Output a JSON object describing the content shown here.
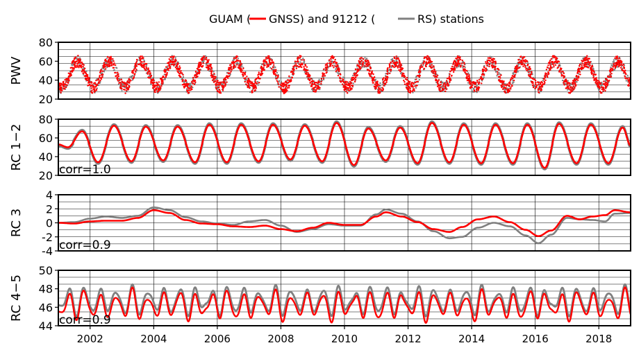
{
  "title": {
    "prefix": "GUAM (",
    "gnss_label": "GNSS) and 91212 (",
    "rs_label": "RS) stations"
  },
  "colors": {
    "gnss": "#ff0000",
    "rs": "#808080",
    "grid": "#000000"
  },
  "x_ticks": [
    "2002",
    "2004",
    "2006",
    "2008",
    "2010",
    "2012",
    "2014",
    "2016",
    "2018"
  ],
  "chart_data": [
    {
      "type": "scatter",
      "ylabel": "PWV",
      "xlim": [
        2001.0,
        2019.0
      ],
      "ylim": [
        20,
        80
      ],
      "y_ticks": [
        20,
        40,
        60,
        80
      ],
      "grid": true,
      "corr_label": "",
      "series": [
        {
          "name": "GNSS",
          "color": "#ff0000",
          "description_values": "daily PWV scatter, seasonal cycle between ~30 and ~62"
        },
        {
          "name": "RS",
          "color": "#808080",
          "description_values": "daily PWV scatter underneath GNSS"
        }
      ],
      "seasonal": {
        "mean": 46,
        "amplitude": 14,
        "noise": 6
      }
    },
    {
      "type": "line",
      "ylabel": "RC 1−2",
      "xlim": [
        2001.0,
        2019.0
      ],
      "ylim": [
        20,
        80
      ],
      "y_ticks": [
        20,
        40,
        60,
        80
      ],
      "grid": true,
      "corr_label": "corr=1.0",
      "peaks": [
        [
          2001.0,
          53
        ],
        [
          2001.3,
          50
        ],
        [
          2001.75,
          67
        ],
        [
          2002.25,
          34
        ],
        [
          2002.75,
          73
        ],
        [
          2003.3,
          35
        ],
        [
          2003.75,
          72
        ],
        [
          2004.3,
          36
        ],
        [
          2004.75,
          72
        ],
        [
          2005.3,
          34
        ],
        [
          2005.75,
          74
        ],
        [
          2006.3,
          34
        ],
        [
          2006.75,
          74
        ],
        [
          2007.3,
          35
        ],
        [
          2007.75,
          74
        ],
        [
          2008.3,
          37
        ],
        [
          2008.75,
          73
        ],
        [
          2009.3,
          35
        ],
        [
          2009.75,
          76
        ],
        [
          2010.3,
          31
        ],
        [
          2010.75,
          70
        ],
        [
          2011.3,
          36
        ],
        [
          2011.75,
          71
        ],
        [
          2012.3,
          33
        ],
        [
          2012.75,
          76
        ],
        [
          2013.3,
          34
        ],
        [
          2013.75,
          74
        ],
        [
          2014.3,
          33
        ],
        [
          2014.75,
          74
        ],
        [
          2015.3,
          33
        ],
        [
          2015.75,
          74
        ],
        [
          2016.3,
          28
        ],
        [
          2016.75,
          75
        ],
        [
          2017.3,
          33
        ],
        [
          2017.75,
          74
        ],
        [
          2018.3,
          33
        ],
        [
          2018.75,
          71
        ],
        [
          2019.0,
          52
        ]
      ],
      "rs_offset": 1.5
    },
    {
      "type": "line",
      "ylabel": "RC 3",
      "xlim": [
        2001.0,
        2019.0
      ],
      "ylim": [
        -4,
        4
      ],
      "y_ticks": [
        -4,
        -2,
        0,
        2,
        4
      ],
      "grid": true,
      "corr_label": "corr=0.9",
      "series": [
        {
          "name": "GNSS",
          "color": "#ff0000",
          "points": [
            [
              2001.0,
              0.0
            ],
            [
              2001.5,
              -0.1
            ],
            [
              2002.0,
              0.2
            ],
            [
              2002.5,
              0.3
            ],
            [
              2003.0,
              0.3
            ],
            [
              2003.5,
              0.7
            ],
            [
              2004.0,
              1.8
            ],
            [
              2004.5,
              1.4
            ],
            [
              2005.0,
              0.4
            ],
            [
              2005.5,
              -0.1
            ],
            [
              2006.0,
              -0.2
            ],
            [
              2006.5,
              -0.5
            ],
            [
              2007.0,
              -0.6
            ],
            [
              2007.5,
              -0.4
            ],
            [
              2008.0,
              -0.9
            ],
            [
              2008.5,
              -1.2
            ],
            [
              2009.0,
              -0.7
            ],
            [
              2009.5,
              0.0
            ],
            [
              2010.0,
              -0.3
            ],
            [
              2010.5,
              -0.3
            ],
            [
              2011.0,
              0.9
            ],
            [
              2011.3,
              1.5
            ],
            [
              2011.8,
              0.9
            ],
            [
              2012.3,
              0.1
            ],
            [
              2012.8,
              -0.9
            ],
            [
              2013.3,
              -1.3
            ],
            [
              2013.7,
              -0.6
            ],
            [
              2014.2,
              0.5
            ],
            [
              2014.7,
              0.9
            ],
            [
              2015.2,
              0.1
            ],
            [
              2015.7,
              -1.0
            ],
            [
              2016.1,
              -1.9
            ],
            [
              2016.5,
              -1.1
            ],
            [
              2017.0,
              1.0
            ],
            [
              2017.4,
              0.5
            ],
            [
              2017.8,
              0.9
            ],
            [
              2018.2,
              1.1
            ],
            [
              2018.5,
              1.8
            ],
            [
              2019.0,
              1.5
            ]
          ]
        },
        {
          "name": "RS",
          "color": "#808080",
          "points": [
            [
              2001.0,
              0.0
            ],
            [
              2001.5,
              0.1
            ],
            [
              2002.0,
              0.6
            ],
            [
              2002.5,
              0.9
            ],
            [
              2003.0,
              0.7
            ],
            [
              2003.5,
              1.0
            ],
            [
              2004.0,
              2.2
            ],
            [
              2004.5,
              1.8
            ],
            [
              2005.0,
              0.8
            ],
            [
              2005.5,
              0.2
            ],
            [
              2006.0,
              -0.1
            ],
            [
              2006.5,
              -0.3
            ],
            [
              2007.0,
              0.2
            ],
            [
              2007.5,
              0.4
            ],
            [
              2008.0,
              -0.4
            ],
            [
              2008.5,
              -1.3
            ],
            [
              2009.0,
              -0.9
            ],
            [
              2009.5,
              -0.2
            ],
            [
              2010.0,
              -0.4
            ],
            [
              2010.5,
              -0.4
            ],
            [
              2011.0,
              1.2
            ],
            [
              2011.3,
              1.9
            ],
            [
              2011.8,
              1.3
            ],
            [
              2012.3,
              0.2
            ],
            [
              2012.8,
              -1.2
            ],
            [
              2013.3,
              -2.2
            ],
            [
              2013.7,
              -2.0
            ],
            [
              2014.2,
              -0.7
            ],
            [
              2014.7,
              0.0
            ],
            [
              2015.2,
              -0.5
            ],
            [
              2015.7,
              -1.8
            ],
            [
              2016.1,
              -2.9
            ],
            [
              2016.5,
              -1.7
            ],
            [
              2017.0,
              0.7
            ],
            [
              2017.4,
              0.5
            ],
            [
              2017.8,
              0.4
            ],
            [
              2018.2,
              0.2
            ],
            [
              2018.5,
              1.3
            ],
            [
              2019.0,
              1.4
            ]
          ]
        }
      ]
    },
    {
      "type": "line",
      "ylabel": "RC 4−5",
      "xlim": [
        2001.0,
        2019.0
      ],
      "ylim": [
        44,
        50
      ],
      "y_ticks": [
        44,
        46,
        48,
        50
      ],
      "grid": true,
      "corr_label": "corr=0.9",
      "oscillation": {
        "mean_gnss": 46.2,
        "mean_rs": 46.7,
        "amplitude": 1.1,
        "cycles_per_year": 2.0
      }
    }
  ]
}
